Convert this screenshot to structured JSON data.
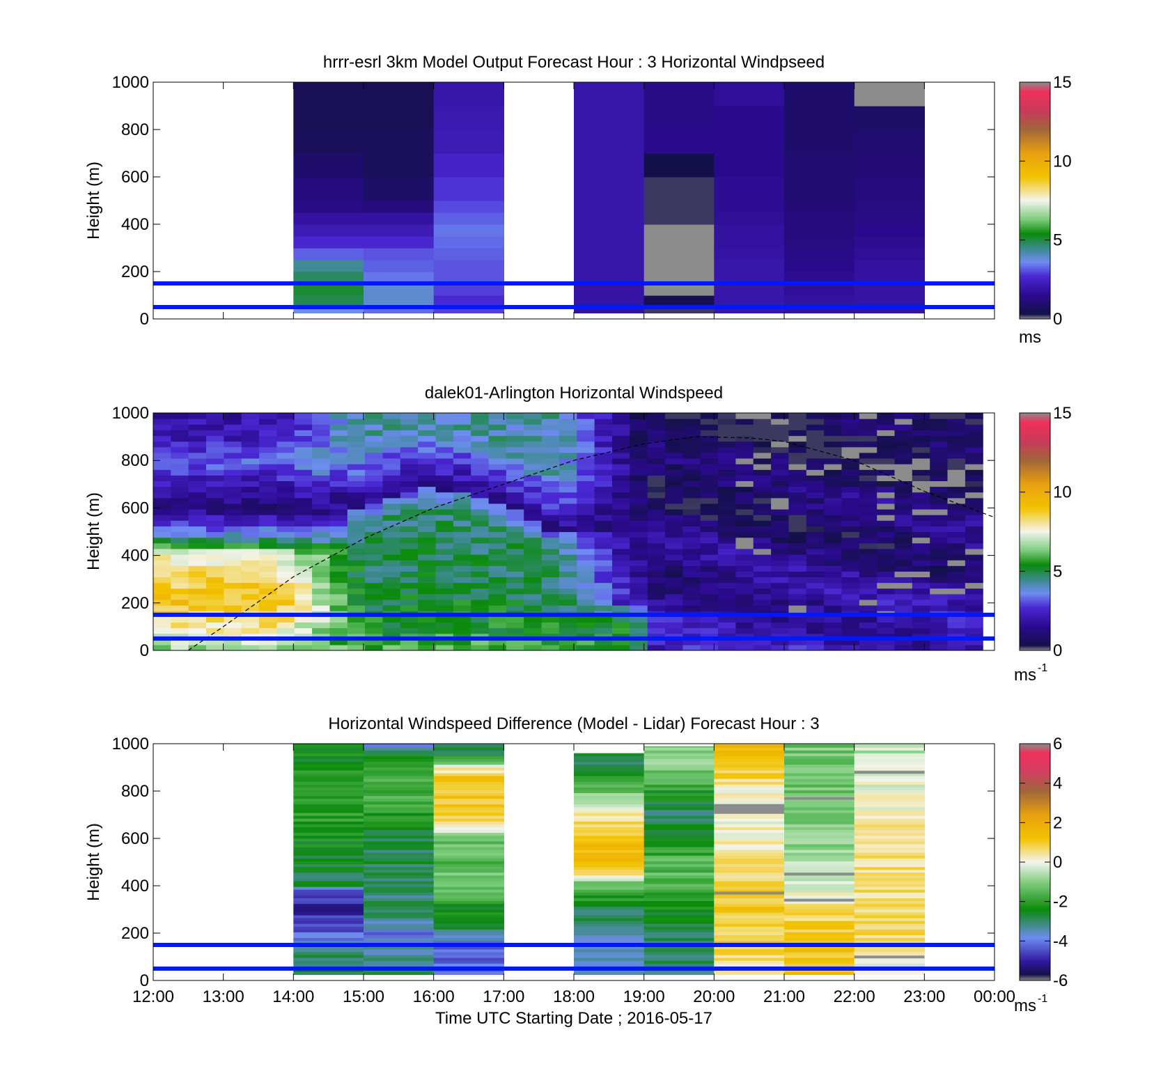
{
  "colors": {
    "reference_lines": "#0018ff",
    "missing_data": "#8c8c8c",
    "speed_colormap": [
      "#8c8c8c",
      "#14104a",
      "#2a0a8c",
      "#4a28d4",
      "#6e8cf0",
      "#3a8a8a",
      "#0a8a0a",
      "#7ccc7c",
      "#f4f4ec",
      "#f2c200",
      "#e8a010",
      "#a0663a",
      "#c83a5a",
      "#f0305a",
      "#8c8c8c"
    ],
    "diff_colormap": [
      "#8c8c8c",
      "#14104a",
      "#3018a0",
      "#6e8cf0",
      "#0a8a0a",
      "#7ccc7c",
      "#f4f4ec",
      "#f2c200",
      "#e8a010",
      "#a0663a",
      "#d04060",
      "#f0305a",
      "#8c8c8c"
    ]
  },
  "xaxis": {
    "ticks": [
      "12:00",
      "13:00",
      "14:00",
      "15:00",
      "16:00",
      "17:00",
      "18:00",
      "19:00",
      "20:00",
      "21:00",
      "22:00",
      "23:00",
      "00:00"
    ],
    "label": "Time UTC  Starting Date ; 2016-05-17"
  },
  "chart_data": [
    {
      "type": "heatmap",
      "title": "hrrr-esrl 3km Model Output   Forecast Hour : 3 Horizontal Windpseed",
      "ylabel": "Height (m)",
      "yticks": [
        "0",
        "200",
        "400",
        "600",
        "800",
        "1000"
      ],
      "ylim": [
        0,
        1000
      ],
      "xlim": [
        "12:00",
        "00:00"
      ],
      "colorbar": {
        "ticks": [
          "0",
          "5",
          "10",
          "15"
        ],
        "range": [
          0,
          15
        ],
        "unit": "ms",
        "unit_sup": ""
      },
      "horizontal_lines_m": [
        50,
        150
      ],
      "hours": [
        "14:00",
        "15:00",
        "16:00",
        "18:00",
        "19:00",
        "20:00",
        "21:00",
        "22:00"
      ],
      "height_bands_m": [
        [
          25,
          50
        ],
        [
          50,
          100
        ],
        [
          100,
          150
        ],
        [
          150,
          200
        ],
        [
          200,
          250
        ],
        [
          250,
          300
        ],
        [
          300,
          350
        ],
        [
          350,
          400
        ],
        [
          400,
          450
        ],
        [
          450,
          500
        ],
        [
          500,
          600
        ],
        [
          600,
          700
        ],
        [
          700,
          800
        ],
        [
          800,
          900
        ],
        [
          900,
          1000
        ]
      ],
      "columns": [
        {
          "hour": "14:00",
          "speeds": [
            3.6,
            4.9,
            5.1,
            4.8,
            4.4,
            3.2,
            2.6,
            2.2,
            1.8,
            1.4,
            1.2,
            0.9,
            0.6,
            0.5,
            0.5
          ]
        },
        {
          "hour": "15:00",
          "speeds": [
            3.3,
            3.9,
            3.9,
            3.4,
            3.2,
            3.1,
            2.6,
            2.2,
            1.8,
            1.2,
            0.8,
            0.6,
            0.6,
            0.5,
            0.5
          ]
        },
        {
          "hour": "16:00",
          "speeds": [
            2.9,
            2.7,
            2.9,
            3.1,
            3.1,
            3.2,
            3.3,
            3.4,
            3.2,
            3.0,
            2.8,
            2.5,
            2.2,
            2.1,
            2.0
          ]
        },
        {
          "hour": "18:00",
          "speeds": [
            1.8,
            1.9,
            1.9,
            2.0,
            2.0,
            2.0,
            2.0,
            2.0,
            2.0,
            2.0,
            2.0,
            2.0,
            2.0,
            2.0,
            2.0
          ]
        },
        {
          "hour": "19:00",
          "speeds": [
            0.2,
            0.4,
            null,
            null,
            null,
            null,
            null,
            null,
            0.2,
            0.2,
            0.2,
            0.3,
            1.5,
            1.4,
            1.4
          ]
        },
        {
          "hour": "20:00",
          "speeds": [
            2.0,
            2.0,
            2.0,
            2.0,
            2.0,
            1.9,
            1.8,
            1.8,
            1.7,
            1.6,
            1.6,
            1.5,
            1.5,
            1.5,
            1.7
          ]
        },
        {
          "hour": "21:00",
          "speeds": [
            1.8,
            1.8,
            1.7,
            1.6,
            1.5,
            1.4,
            1.3,
            1.2,
            1.2,
            1.1,
            1.0,
            1.0,
            0.9,
            0.9,
            0.9
          ]
        },
        {
          "hour": "22:00",
          "speeds": [
            1.9,
            1.9,
            1.9,
            1.8,
            1.8,
            1.7,
            1.6,
            1.5,
            1.4,
            1.3,
            1.2,
            1.1,
            1.0,
            0.8,
            null
          ]
        }
      ]
    },
    {
      "type": "heatmap",
      "title": "dalek01-Arlington  Horizontal Windspeed",
      "ylabel": "Height (m)",
      "yticks": [
        "0",
        "200",
        "400",
        "600",
        "800",
        "1000"
      ],
      "ylim": [
        0,
        1000
      ],
      "xlim": [
        "12:00",
        "00:00"
      ],
      "colorbar": {
        "ticks": [
          "0",
          "5",
          "10",
          "15"
        ],
        "range": [
          0,
          15
        ],
        "unit": "ms",
        "unit_sup": "-1"
      },
      "horizontal_lines_m": [
        50,
        150
      ],
      "dashed_curve": {
        "x": [
          "12:30",
          "13:00",
          "14:00",
          "15:00",
          "16:00",
          "17:00",
          "18:00",
          "19:00",
          "19:45",
          "20:30",
          "21:00",
          "22:00",
          "23:00",
          "00:00"
        ],
        "height_m": [
          0,
          100,
          310,
          470,
          600,
          700,
          800,
          870,
          900,
          895,
          880,
          800,
          670,
          560
        ]
      },
      "time_bins_count": 47,
      "height_bins_count": 42,
      "regime_breakpoints": [
        "19:00",
        "23:50"
      ],
      "speed_profile_anchors_m": {
        "morning_low_jet": [
          [
            0,
            6.5
          ],
          [
            100,
            8.0
          ],
          [
            200,
            9.0
          ],
          [
            300,
            8.5
          ],
          [
            400,
            7.5
          ],
          [
            470,
            4.5
          ],
          [
            520,
            3.0
          ],
          [
            600,
            1.2
          ],
          [
            700,
            2.0
          ],
          [
            800,
            3.2
          ],
          [
            900,
            2.2
          ],
          [
            1000,
            1.8
          ]
        ],
        "midday_mixed": [
          [
            0,
            5.8
          ],
          [
            200,
            5.0
          ],
          [
            500,
            4.7
          ],
          [
            600,
            3.2
          ],
          [
            700,
            1.5
          ],
          [
            900,
            4.2
          ],
          [
            1000,
            4.5
          ]
        ],
        "evening": [
          [
            0,
            2.2
          ],
          [
            300,
            1.5
          ],
          [
            600,
            1.0
          ],
          [
            900,
            0.6
          ],
          [
            1000,
            0.5
          ]
        ]
      }
    },
    {
      "type": "heatmap",
      "title": "Horizontal Windspeed Difference (Model - Lidar) Forecast Hour : 3",
      "ylabel": "Height (m)",
      "yticks": [
        "0",
        "200",
        "400",
        "600",
        "800",
        "1000"
      ],
      "ylim": [
        0,
        1000
      ],
      "xlim": [
        "12:00",
        "00:00"
      ],
      "colorbar": {
        "ticks": [
          "-6",
          "-4",
          "-2",
          "0",
          "2",
          "4",
          "6"
        ],
        "range": [
          -6,
          6
        ],
        "unit": "ms",
        "unit_sup": "-1"
      },
      "horizontal_lines_m": [
        50,
        150
      ],
      "hours": [
        "14:00",
        "15:00",
        "16:00",
        "18:00",
        "19:00",
        "20:00",
        "21:00",
        "22:00"
      ],
      "column_tops_m": [
        1000,
        1000,
        1000,
        960,
        990,
        1000,
        1000,
        1000
      ],
      "diff_profiles_m": [
        {
          "hour": "14:00",
          "anchors": [
            [
              25,
              -2.8
            ],
            [
              120,
              -3.0
            ],
            [
              200,
              -4.2
            ],
            [
              300,
              -5.0
            ],
            [
              380,
              -4.5
            ],
            [
              400,
              -2.8
            ],
            [
              550,
              -2.4
            ],
            [
              700,
              -2.0
            ],
            [
              900,
              -2.2
            ],
            [
              1000,
              -2.6
            ]
          ]
        },
        {
          "hour": "15:00",
          "anchors": [
            [
              25,
              -3.0
            ],
            [
              120,
              -3.5
            ],
            [
              200,
              -4.0
            ],
            [
              250,
              -3.2
            ],
            [
              400,
              -3.0
            ],
            [
              600,
              -2.8
            ],
            [
              800,
              -1.6
            ],
            [
              900,
              -2.0
            ],
            [
              950,
              -2.6
            ],
            [
              1000,
              -4.0
            ]
          ]
        },
        {
          "hour": "16:00",
          "anchors": [
            [
              25,
              -4.0
            ],
            [
              150,
              -4.2
            ],
            [
              200,
              -3.0
            ],
            [
              300,
              -2.4
            ],
            [
              400,
              -1.0
            ],
            [
              500,
              -1.6
            ],
            [
              600,
              -1.2
            ],
            [
              650,
              0.0
            ],
            [
              700,
              1.0
            ],
            [
              850,
              1.2
            ],
            [
              900,
              0.2
            ],
            [
              950,
              -2.6
            ],
            [
              1000,
              -3.0
            ]
          ]
        },
        {
          "hour": "18:00",
          "anchors": [
            [
              25,
              -3.2
            ],
            [
              150,
              -3.8
            ],
            [
              200,
              -3.0
            ],
            [
              300,
              -2.8
            ],
            [
              400,
              -1.5
            ],
            [
              450,
              0.3
            ],
            [
              500,
              1.2
            ],
            [
              600,
              1.3
            ],
            [
              700,
              0.2
            ],
            [
              800,
              -1.2
            ],
            [
              900,
              -2.6
            ],
            [
              960,
              -3.0
            ]
          ]
        },
        {
          "hour": "19:00",
          "anchors": [
            [
              25,
              -3.0
            ],
            [
              200,
              -3.0
            ],
            [
              400,
              -1.6
            ],
            [
              500,
              -1.4
            ],
            [
              600,
              -2.4
            ],
            [
              700,
              -3.0
            ],
            [
              800,
              -2.2
            ],
            [
              900,
              -1.0
            ],
            [
              990,
              -1.2
            ]
          ]
        },
        {
          "hour": "20:00",
          "anchors": [
            [
              25,
              0.3
            ],
            [
              150,
              0.8
            ],
            [
              300,
              1.0
            ],
            [
              400,
              0.8
            ],
            [
              600,
              0.2
            ],
            [
              800,
              0.0
            ],
            [
              900,
              1.2
            ],
            [
              1000,
              1.4
            ]
          ]
        },
        {
          "hour": "21:00",
          "anchors": [
            [
              25,
              1.2
            ],
            [
              200,
              1.1
            ],
            [
              300,
              0.6
            ],
            [
              400,
              -0.4
            ],
            [
              600,
              -1.0
            ],
            [
              800,
              -1.2
            ],
            [
              1000,
              -1.2
            ]
          ]
        },
        {
          "hour": "22:00",
          "anchors": [
            [
              25,
              -0.2
            ],
            [
              100,
              0.2
            ],
            [
              200,
              0.6
            ],
            [
              400,
              0.6
            ],
            [
              600,
              0.4
            ],
            [
              800,
              0.0
            ],
            [
              1000,
              -0.6
            ]
          ]
        }
      ],
      "missing_value_rows": [
        {
          "hour": "20:00",
          "height_m": 735
        },
        {
          "hour": "20:00",
          "height_m": 365
        },
        {
          "hour": "21:00",
          "height_m": 765
        },
        {
          "hour": "21:00",
          "height_m": 445
        },
        {
          "hour": "21:00",
          "height_m": 335
        },
        {
          "hour": "22:00",
          "height_m": 875
        },
        {
          "hour": "22:00",
          "height_m": 95
        }
      ]
    }
  ]
}
